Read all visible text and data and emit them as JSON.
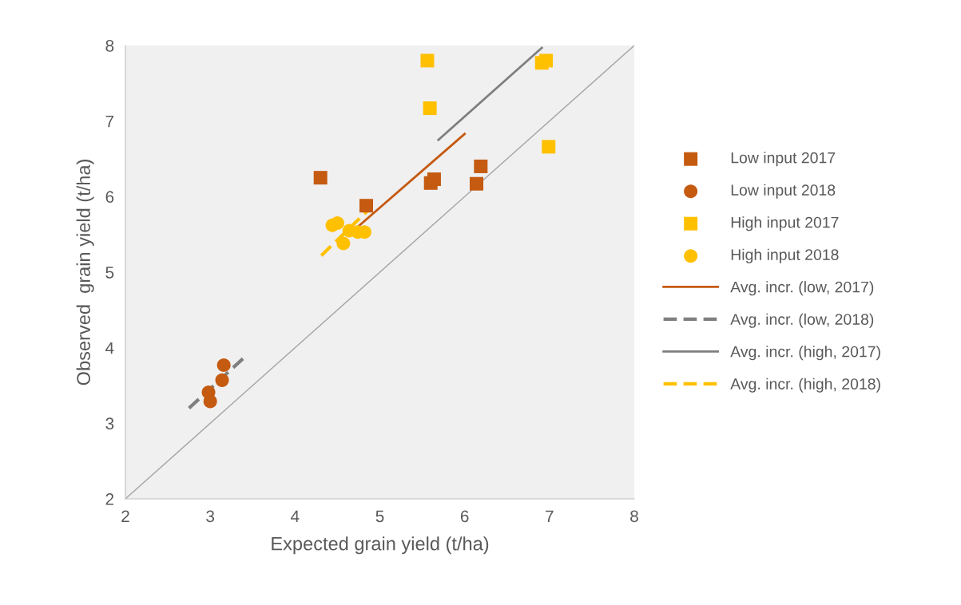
{
  "chart_data": {
    "type": "scatter",
    "xlabel": "Expected grain yield (t/ha)",
    "ylabel": "Observed  grain yield (t/ha)",
    "xlim": [
      2,
      8
    ],
    "ylim": [
      2,
      8
    ],
    "xticks": [
      2,
      3,
      4,
      5,
      6,
      7,
      8
    ],
    "yticks": [
      2,
      3,
      4,
      5,
      6,
      7,
      8
    ],
    "grid": false,
    "legend": "right",
    "series": [
      {
        "name": "Low input 2017",
        "marker": "square",
        "color": "#c55a11",
        "x": [
          4.3,
          4.84,
          5.6,
          5.64,
          6.14,
          6.19
        ],
        "values": [
          6.25,
          5.88,
          6.18,
          6.23,
          6.17,
          6.4
        ]
      },
      {
        "name": "Low input 2018",
        "marker": "circle",
        "color": "#c55a11",
        "x": [
          2.98,
          3.0,
          3.14,
          3.16
        ],
        "values": [
          3.41,
          3.29,
          3.57,
          3.77
        ]
      },
      {
        "name": "High input 2017",
        "marker": "square",
        "color": "#ffc000",
        "x": [
          5.56,
          5.59,
          6.91,
          6.96,
          6.99
        ],
        "values": [
          7.8,
          7.17,
          7.77,
          7.8,
          6.66
        ]
      },
      {
        "name": "High input 2018",
        "marker": "circle",
        "color": "#ffc000",
        "x": [
          4.44,
          4.5,
          4.57,
          4.64,
          4.74,
          4.82
        ],
        "values": [
          5.62,
          5.65,
          5.38,
          5.55,
          5.53,
          5.53
        ]
      },
      {
        "name": "Avg. incr. (low, 2017)",
        "type": "line",
        "line_style": "solid",
        "color": "#c55a11",
        "x": [
          4.75,
          6.0
        ],
        "values": [
          5.61,
          6.83
        ]
      },
      {
        "name": "Avg. incr. (low, 2018)",
        "type": "line",
        "line_style": "dashed",
        "color": "#7f7f7f",
        "x": [
          2.75,
          3.4
        ],
        "values": [
          3.2,
          3.87
        ]
      },
      {
        "name": "Avg. incr. (high, 2017)",
        "type": "line",
        "line_style": "solid",
        "color": "#7f7f7f",
        "x": [
          5.69,
          6.91
        ],
        "values": [
          6.75,
          7.97
        ]
      },
      {
        "name": "Avg. incr. (high, 2018)",
        "type": "line",
        "line_style": "dashed",
        "color": "#ffc000",
        "x": [
          4.31,
          4.87
        ],
        "values": [
          5.22,
          5.83
        ]
      },
      {
        "type": "line",
        "line_style": "solid",
        "color": "#a6a6a6",
        "x": [
          2,
          8
        ],
        "values": [
          2,
          8
        ]
      }
    ]
  }
}
